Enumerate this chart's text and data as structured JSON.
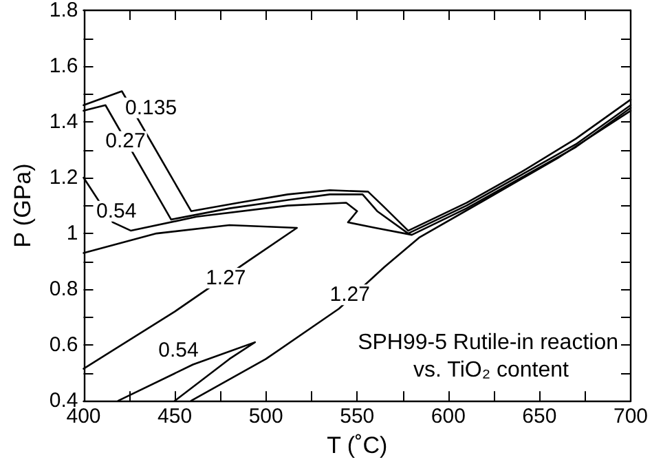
{
  "chart_data": {
    "type": "line",
    "title": "SPH99-5 Rutile-in reaction vs. TiO₂ content",
    "xlabel": "T (˚C)",
    "ylabel": "P (GPa)",
    "xlim": [
      400,
      700
    ],
    "ylim": [
      0.4,
      1.8
    ],
    "xticks": [
      400,
      {
        "value": 425,
        "label": null
      },
      450,
      {
        "value": 475,
        "label": null
      },
      500,
      {
        "value": 525,
        "label": null
      },
      550,
      {
        "value": 575,
        "label": null
      },
      600,
      {
        "value": 625,
        "label": null
      },
      650,
      {
        "value": 675,
        "label": null
      },
      700
    ],
    "yticks": [
      0.4,
      {
        "value": 0.5,
        "label": null
      },
      0.6,
      {
        "value": 0.7,
        "label": null
      },
      0.8,
      {
        "value": 0.9,
        "label": null
      },
      1.0,
      {
        "value": 1.1,
        "label": null
      },
      1.2,
      {
        "value": 1.3,
        "label": null
      },
      1.4,
      {
        "value": 1.5,
        "label": null
      },
      1.6,
      {
        "value": 1.7,
        "label": null
      },
      1.8
    ],
    "grid": false,
    "marker": "none",
    "line_style": "solid",
    "series": [
      {
        "color": "#000000",
        "x": [
          400,
          421,
          459,
          485,
          512,
          535,
          556,
          564,
          578,
          610,
          640,
          670,
          700
        ],
        "values": [
          1.46,
          1.51,
          1.08,
          1.11,
          1.14,
          1.155,
          1.15,
          1.1,
          1.01,
          1.11,
          1.22,
          1.34,
          1.48
        ]
      },
      {
        "color": "#000000",
        "x": [
          400,
          412,
          448,
          480,
          512,
          535,
          553,
          561,
          578,
          610,
          640,
          670,
          700
        ],
        "values": [
          1.44,
          1.46,
          1.05,
          1.09,
          1.12,
          1.14,
          1.14,
          1.08,
          1.0,
          1.1,
          1.21,
          1.32,
          1.46
        ]
      },
      {
        "color": "#000000",
        "x": [
          400,
          416,
          426,
          462,
          512,
          544,
          550,
          545,
          560,
          580,
          610,
          640,
          670,
          700
        ],
        "values": [
          1.2,
          1.04,
          1.01,
          1.06,
          1.1,
          1.11,
          1.08,
          1.04,
          1.02,
          0.995,
          1.09,
          1.2,
          1.31,
          1.45
        ]
      },
      {
        "color": "#000000",
        "x": [
          400,
          450,
          490,
          517,
          480,
          440,
          400
        ],
        "values": [
          0.515,
          0.72,
          0.9,
          1.02,
          1.03,
          1.0,
          0.93
        ]
      },
      {
        "color": "#000000",
        "x": [
          459,
          500,
          540,
          565,
          584,
          620,
          660,
          700
        ],
        "values": [
          0.4,
          0.55,
          0.73,
          0.88,
          0.985,
          1.12,
          1.27,
          1.44
        ]
      },
      {
        "color": "#000000",
        "x": [
          419,
          460,
          494,
          480,
          450
        ],
        "values": [
          0.4,
          0.53,
          0.61,
          0.55,
          0.4
        ]
      }
    ],
    "annotations": [
      {
        "text": "0.135",
        "x": 437,
        "y": 1.45
      },
      {
        "text": "0.27",
        "x": 423,
        "y": 1.33
      },
      {
        "text": "0.54",
        "x": 418,
        "y": 1.08
      },
      {
        "text": "1.27",
        "x": 478,
        "y": 0.84
      },
      {
        "text": "0.54",
        "x": 452,
        "y": 0.58
      },
      {
        "text": "1.27",
        "x": 546,
        "y": 0.78
      }
    ]
  }
}
